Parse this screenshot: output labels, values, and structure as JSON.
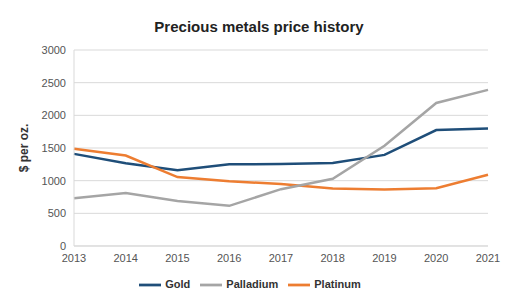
{
  "chart_data": {
    "type": "line",
    "title": "Precious metals price history",
    "y_label": "$ per oz.",
    "categories": [
      "2013",
      "2014",
      "2015",
      "2016",
      "2017",
      "2018",
      "2019",
      "2020",
      "2021"
    ],
    "series": [
      {
        "name": "Gold",
        "color": "#1f4e79",
        "values": [
          1410,
          1265,
          1160,
          1250,
          1255,
          1270,
          1395,
          1775,
          1800
        ]
      },
      {
        "name": "Platinum",
        "color": "#ed7d31",
        "values": [
          1490,
          1385,
          1055,
          990,
          950,
          880,
          865,
          885,
          1090
        ]
      },
      {
        "name": "Palladium",
        "color": "#a5a5a5",
        "values": [
          730,
          810,
          690,
          615,
          870,
          1030,
          1535,
          2190,
          2390
        ]
      }
    ],
    "ylim": [
      0,
      3000
    ],
    "yticks": [
      0,
      500,
      1000,
      1500,
      2000,
      2500,
      3000
    ],
    "grid": true,
    "legend": "bottom"
  }
}
